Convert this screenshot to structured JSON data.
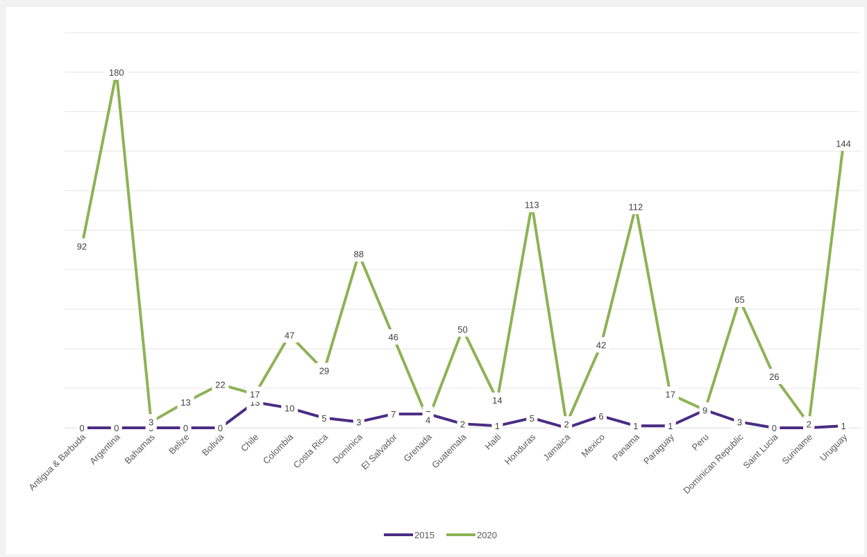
{
  "chart_data": {
    "type": "line",
    "title": "",
    "xlabel": "",
    "ylabel": "",
    "ylim": [
      0,
      200
    ],
    "y_gridline_step": 20,
    "y_tick_labels_visible": false,
    "grid": true,
    "legend_position": "bottom",
    "categories": [
      "Antigua & Barbuda",
      "Argentina",
      "Bahamas",
      "Belize",
      "Bolivia",
      "Chile",
      "Colombia",
      "Costa Rica",
      "Dominica",
      "El Salvador",
      "Grenada",
      "Guatemala",
      "Haiti",
      "Honduras",
      "Jamaica",
      "Mexico",
      "Panama",
      "Paraguay",
      "Peru",
      "Dominican Republic",
      "Saint Lucia",
      "Suriname",
      "Uruguay"
    ],
    "series": [
      {
        "name": "2015",
        "color": "#4b2d83",
        "values": [
          0,
          0,
          0,
          0,
          0,
          13,
          10,
          5,
          3,
          7,
          7,
          2,
          1,
          5,
          0,
          6,
          1,
          1,
          9,
          3,
          0,
          0,
          1
        ],
        "labels": [
          "0",
          "0",
          "0",
          "0",
          "0",
          "13",
          "10",
          "5",
          "3",
          "7",
          "7",
          "2",
          "1",
          "5",
          "0",
          "6",
          "1",
          "1",
          "9",
          "3",
          "0",
          "0",
          "1"
        ]
      },
      {
        "name": "2020",
        "color": "#8db255",
        "values": [
          92,
          180,
          3,
          13,
          22,
          17,
          47,
          29,
          88,
          46,
          4,
          50,
          14,
          113,
          2,
          42,
          112,
          17,
          9,
          65,
          26,
          2,
          144
        ],
        "labels": [
          "92",
          "180",
          "3",
          "13",
          "22",
          "17",
          "47",
          "29",
          "88",
          "46",
          "4",
          "50",
          "14",
          "113",
          "2",
          "42",
          "112",
          "17",
          "9",
          "65",
          "26",
          "2",
          "144"
        ]
      }
    ]
  }
}
